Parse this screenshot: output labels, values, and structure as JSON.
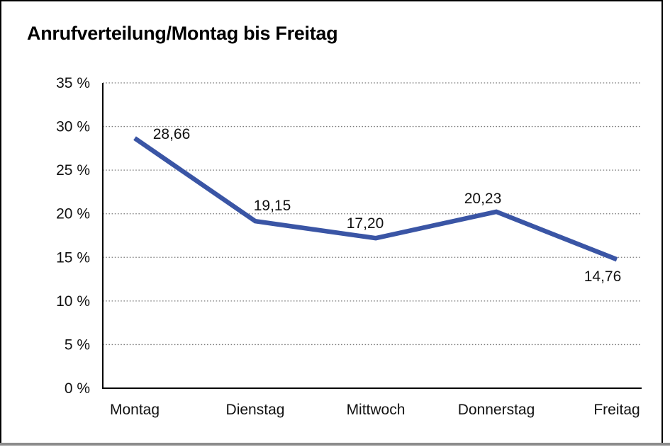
{
  "header": {
    "title": "Anrufverteilung/Montag bis Freitag"
  },
  "chart_data": {
    "type": "line",
    "title": "Anrufverteilung/Montag bis Freitag",
    "categories": [
      "Montag",
      "Dienstag",
      "Mittwoch",
      "Donnerstag",
      "Freitag"
    ],
    "values": [
      28.66,
      19.15,
      17.2,
      20.23,
      14.76
    ],
    "data_labels": [
      "28,66",
      "19,15",
      "17,20",
      "20,23",
      "14,76"
    ],
    "y_ticks": [
      {
        "label": "0 %",
        "value": 0
      },
      {
        "label": "5 %",
        "value": 5
      },
      {
        "label": "10 %",
        "value": 10
      },
      {
        "label": "15 %",
        "value": 15
      },
      {
        "label": "20 %",
        "value": 20
      },
      {
        "label": "25 %",
        "value": 25
      },
      {
        "label": "30 %",
        "value": 30
      },
      {
        "label": "35 %",
        "value": 35
      }
    ],
    "ylim": [
      0,
      35
    ],
    "unit": "%",
    "grid": "horizontal-dotted",
    "legend": "none",
    "colors": {
      "line": "#3A55A5",
      "axis": "#000000",
      "gridline": "#7a7a7a",
      "label_text": "#111111"
    }
  }
}
